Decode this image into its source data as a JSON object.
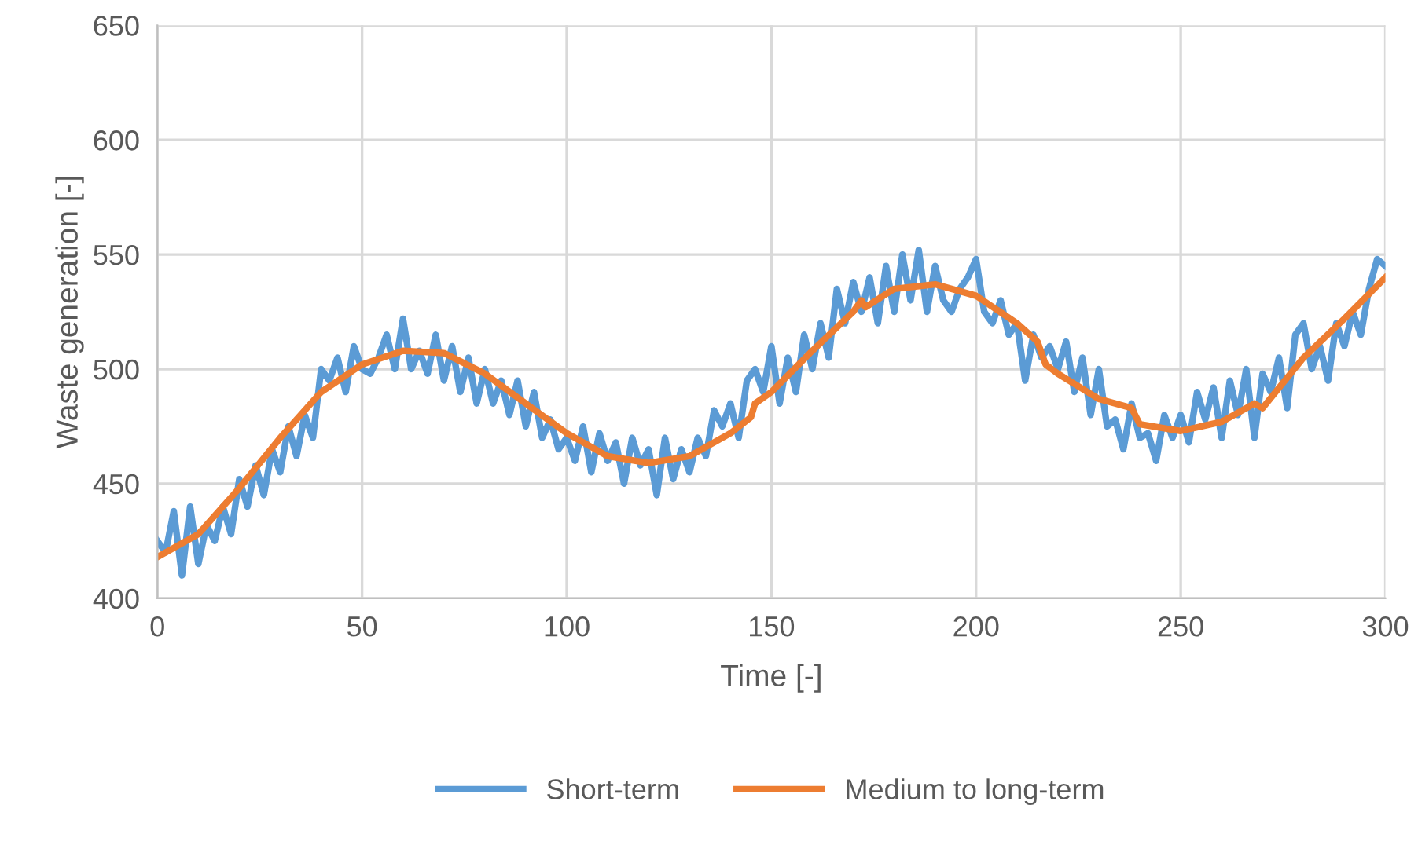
{
  "chart_data": {
    "type": "line",
    "xlabel": "Time [-]",
    "ylabel": "Waste generation [-]",
    "xlim": [
      0,
      300
    ],
    "xticks": [
      0,
      50,
      100,
      150,
      200,
      250,
      300
    ],
    "ylim": [
      400,
      650
    ],
    "yticks": [
      400,
      450,
      500,
      550,
      600,
      650
    ],
    "grid": true,
    "legend": "bottom",
    "marker": "none",
    "line_style": "solid",
    "series": [
      {
        "name": "Short-term",
        "color": "#5b9bd5",
        "x": [
          0,
          2,
          4,
          6,
          8,
          10,
          12,
          14,
          16,
          18,
          20,
          22,
          24,
          26,
          28,
          30,
          32,
          34,
          36,
          38,
          40,
          42,
          44,
          46,
          48,
          50,
          52,
          54,
          56,
          58,
          60,
          62,
          64,
          66,
          68,
          70,
          72,
          74,
          76,
          78,
          80,
          82,
          84,
          86,
          88,
          90,
          92,
          94,
          96,
          98,
          100,
          102,
          104,
          106,
          108,
          110,
          112,
          114,
          116,
          118,
          120,
          122,
          124,
          126,
          128,
          130,
          132,
          134,
          136,
          138,
          140,
          142,
          144,
          146,
          148,
          150,
          152,
          154,
          156,
          158,
          160,
          162,
          164,
          166,
          168,
          170,
          172,
          174,
          176,
          178,
          180,
          182,
          184,
          186,
          188,
          190,
          192,
          194,
          196,
          198,
          200,
          202,
          204,
          206,
          208,
          210,
          212,
          214,
          216,
          218,
          220,
          222,
          224,
          226,
          228,
          230,
          232,
          234,
          236,
          238,
          240,
          242,
          244,
          246,
          248,
          250,
          252,
          254,
          256,
          258,
          260,
          262,
          264,
          266,
          268,
          270,
          272,
          274,
          276,
          278,
          280,
          282,
          284,
          286,
          288,
          290,
          292,
          294,
          296,
          298,
          300
        ],
        "values": [
          425,
          420,
          438,
          410,
          440,
          415,
          432,
          425,
          440,
          428,
          452,
          440,
          458,
          445,
          465,
          455,
          475,
          462,
          480,
          470,
          500,
          495,
          505,
          490,
          510,
          500,
          498,
          505,
          515,
          500,
          522,
          500,
          508,
          498,
          515,
          495,
          510,
          490,
          505,
          485,
          500,
          485,
          495,
          480,
          495,
          475,
          490,
          470,
          478,
          465,
          470,
          460,
          475,
          455,
          472,
          460,
          468,
          450,
          470,
          458,
          465,
          445,
          470,
          452,
          465,
          455,
          470,
          462,
          482,
          475,
          485,
          470,
          495,
          500,
          490,
          510,
          485,
          505,
          490,
          515,
          500,
          520,
          505,
          535,
          520,
          538,
          525,
          540,
          520,
          545,
          525,
          550,
          530,
          552,
          525,
          545,
          530,
          525,
          535,
          540,
          548,
          525,
          520,
          530,
          515,
          520,
          495,
          515,
          505,
          510,
          500,
          512,
          490,
          505,
          480,
          500,
          475,
          478,
          465,
          485,
          470,
          472,
          460,
          480,
          470,
          480,
          468,
          490,
          478,
          492,
          470,
          495,
          480,
          500,
          470,
          498,
          490,
          505,
          483,
          515,
          520,
          500,
          510,
          495,
          520,
          510,
          525,
          515,
          535,
          548,
          545
        ]
      },
      {
        "name": "Medium to long-term",
        "color": "#ed7d31",
        "x": [
          0,
          10,
          20,
          30,
          40,
          50,
          60,
          70,
          80,
          90,
          100,
          110,
          120,
          130,
          140,
          145,
          146,
          150,
          160,
          170,
          172,
          173,
          180,
          190,
          200,
          210,
          215,
          217,
          220,
          230,
          238,
          240,
          250,
          260,
          268,
          270,
          280,
          290,
          300
        ],
        "values": [
          418,
          428,
          448,
          470,
          490,
          502,
          508,
          507,
          498,
          485,
          472,
          462,
          459,
          462,
          472,
          479,
          485,
          490,
          508,
          525,
          530,
          527,
          535,
          537,
          532,
          520,
          512,
          502,
          498,
          487,
          483,
          476,
          473,
          477,
          485,
          483,
          505,
          522,
          540
        ]
      }
    ]
  }
}
